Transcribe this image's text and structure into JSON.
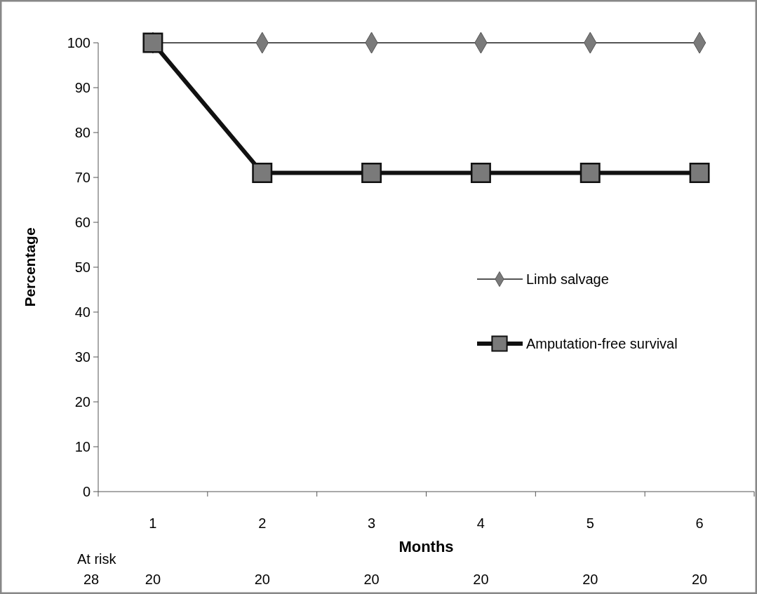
{
  "chart_data": {
    "type": "line",
    "xlabel": "Months",
    "ylabel": "Percentage",
    "categories": [
      "1",
      "2",
      "3",
      "4",
      "5",
      "6"
    ],
    "ylim": [
      0,
      100
    ],
    "yticks": [
      0,
      10,
      20,
      30,
      40,
      50,
      60,
      70,
      80,
      90,
      100
    ],
    "grid": false,
    "legend": "right",
    "series": [
      {
        "name": "Limb salvage",
        "color": "#555555",
        "marker": "diamond",
        "values": [
          100,
          100,
          100,
          100,
          100,
          100
        ]
      },
      {
        "name": "Amputation-free survival",
        "color": "#111111",
        "marker": "square",
        "values": [
          100,
          71,
          71,
          71,
          71,
          71
        ]
      }
    ],
    "annotations": [
      "At risk",
      "28",
      "20",
      "20",
      "20",
      "20",
      "20",
      "20"
    ]
  }
}
